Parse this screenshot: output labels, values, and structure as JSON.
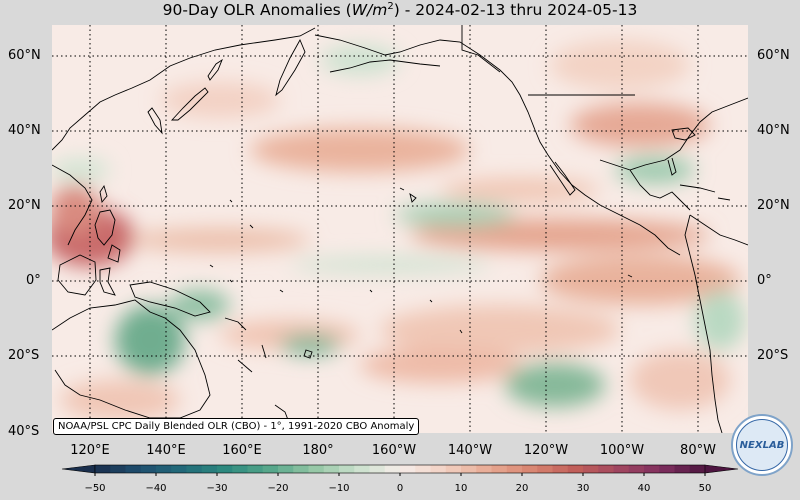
{
  "title": {
    "prefix": "90-Day OLR Anomalies (",
    "unit_base": "W/m",
    "unit_exp": "2",
    "suffix": ") - 2024-02-13 thru 2024-05-13"
  },
  "lat_labels": [
    "60°N",
    "40°N",
    "20°N",
    "0°",
    "20°S",
    "40°S"
  ],
  "lon_labels": [
    "120°E",
    "140°E",
    "160°E",
    "180°",
    "160°W",
    "140°W",
    "120°W",
    "100°W",
    "80°W"
  ],
  "source_label": "NOAA/PSL CPC Daily Blended OLR (CBO) - 1°, 1991-2020 CBO Anomaly",
  "colorbar": {
    "ticks": [
      "−50",
      "−40",
      "−30",
      "−20",
      "−10",
      "0",
      "10",
      "20",
      "30",
      "40",
      "50"
    ],
    "colors": [
      "#1a2f4d",
      "#1f4e6e",
      "#226a7a",
      "#2d8a7f",
      "#55a68a",
      "#93c6a4",
      "#c9e0cc",
      "#f6ede9",
      "#f2d2c4",
      "#e8ab95",
      "#d98672",
      "#c2605a",
      "#a24760",
      "#7f2f5f",
      "#4d1540"
    ]
  },
  "logo_text": "NEXLAB"
}
